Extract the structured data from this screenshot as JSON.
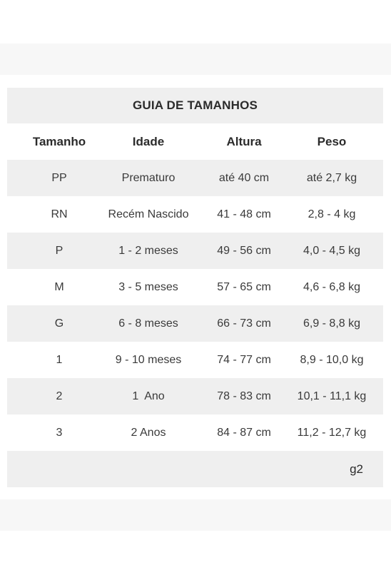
{
  "title": "GUIA DE TAMANHOS",
  "headers": [
    "Tamanho",
    "Idade",
    "Altura",
    "Peso"
  ],
  "rows": [
    [
      "PP",
      "Prematuro",
      "até 40 cm",
      "até 2,7 kg"
    ],
    [
      "RN",
      "Recém Nascido",
      "41 - 48 cm",
      "2,8 - 4 kg"
    ],
    [
      "P",
      "1 - 2 meses",
      "49 - 56 cm",
      "4,0 - 4,5 kg"
    ],
    [
      "M",
      "3 - 5 meses",
      "57 - 65 cm",
      "4,6 - 6,8 kg"
    ],
    [
      "G",
      "6 - 8 meses",
      "66 - 73 cm",
      "6,9 - 8,8 kg"
    ],
    [
      "1",
      "9 - 10 meses",
      "74 - 77 cm",
      "8,9 - 10,0 kg"
    ],
    [
      "2",
      "1  Ano",
      "78 - 83 cm",
      "10,1 - 11,1 kg"
    ],
    [
      "3",
      "2 Anos",
      "84 - 87 cm",
      "11,2 - 12,7 kg"
    ]
  ],
  "footer_note": "g2"
}
